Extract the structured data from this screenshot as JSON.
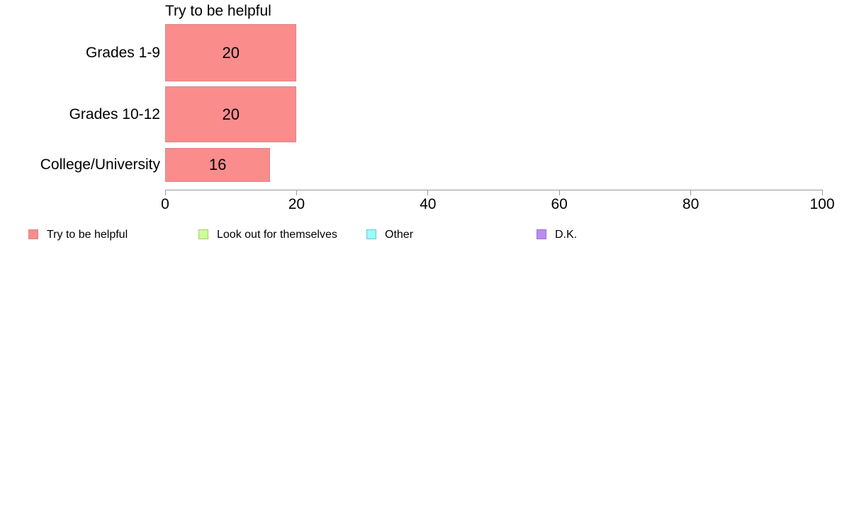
{
  "chart_data": {
    "type": "bar",
    "orientation": "horizontal",
    "title": "Try to be helpful",
    "categories": [
      "Grades 1-9",
      "Grades 10-12",
      "College/University"
    ],
    "values": [
      20,
      20,
      16
    ],
    "value_labels": [
      "20",
      "20",
      "16"
    ],
    "xlabel": "",
    "ylabel": "",
    "xlim": [
      0,
      100
    ],
    "x_ticks": [
      "0",
      "20",
      "40",
      "60",
      "80",
      "100"
    ],
    "grid": false,
    "legend_position": "bottom-left",
    "series": [
      {
        "name": "Try to be helpful",
        "values": [
          20,
          20,
          16
        ]
      }
    ],
    "legend": [
      {
        "label": "Try to be helpful",
        "color": "#FA8C8C",
        "border": "#D98888"
      },
      {
        "label": "Look out for themselves",
        "color": "#CCFF99",
        "border": "#AACC77"
      },
      {
        "label": "Other",
        "color": "#99FFFF",
        "border": "#6EC6CE"
      },
      {
        "label": "D.K.",
        "color": "#BB8BF0",
        "border": "#9A6FD0"
      }
    ]
  },
  "colors": {
    "background": "#FFFFFF",
    "bar_fill": "#FA8C8C",
    "bar_border": "#D98888",
    "axis": "#999999",
    "text": "#000000"
  }
}
